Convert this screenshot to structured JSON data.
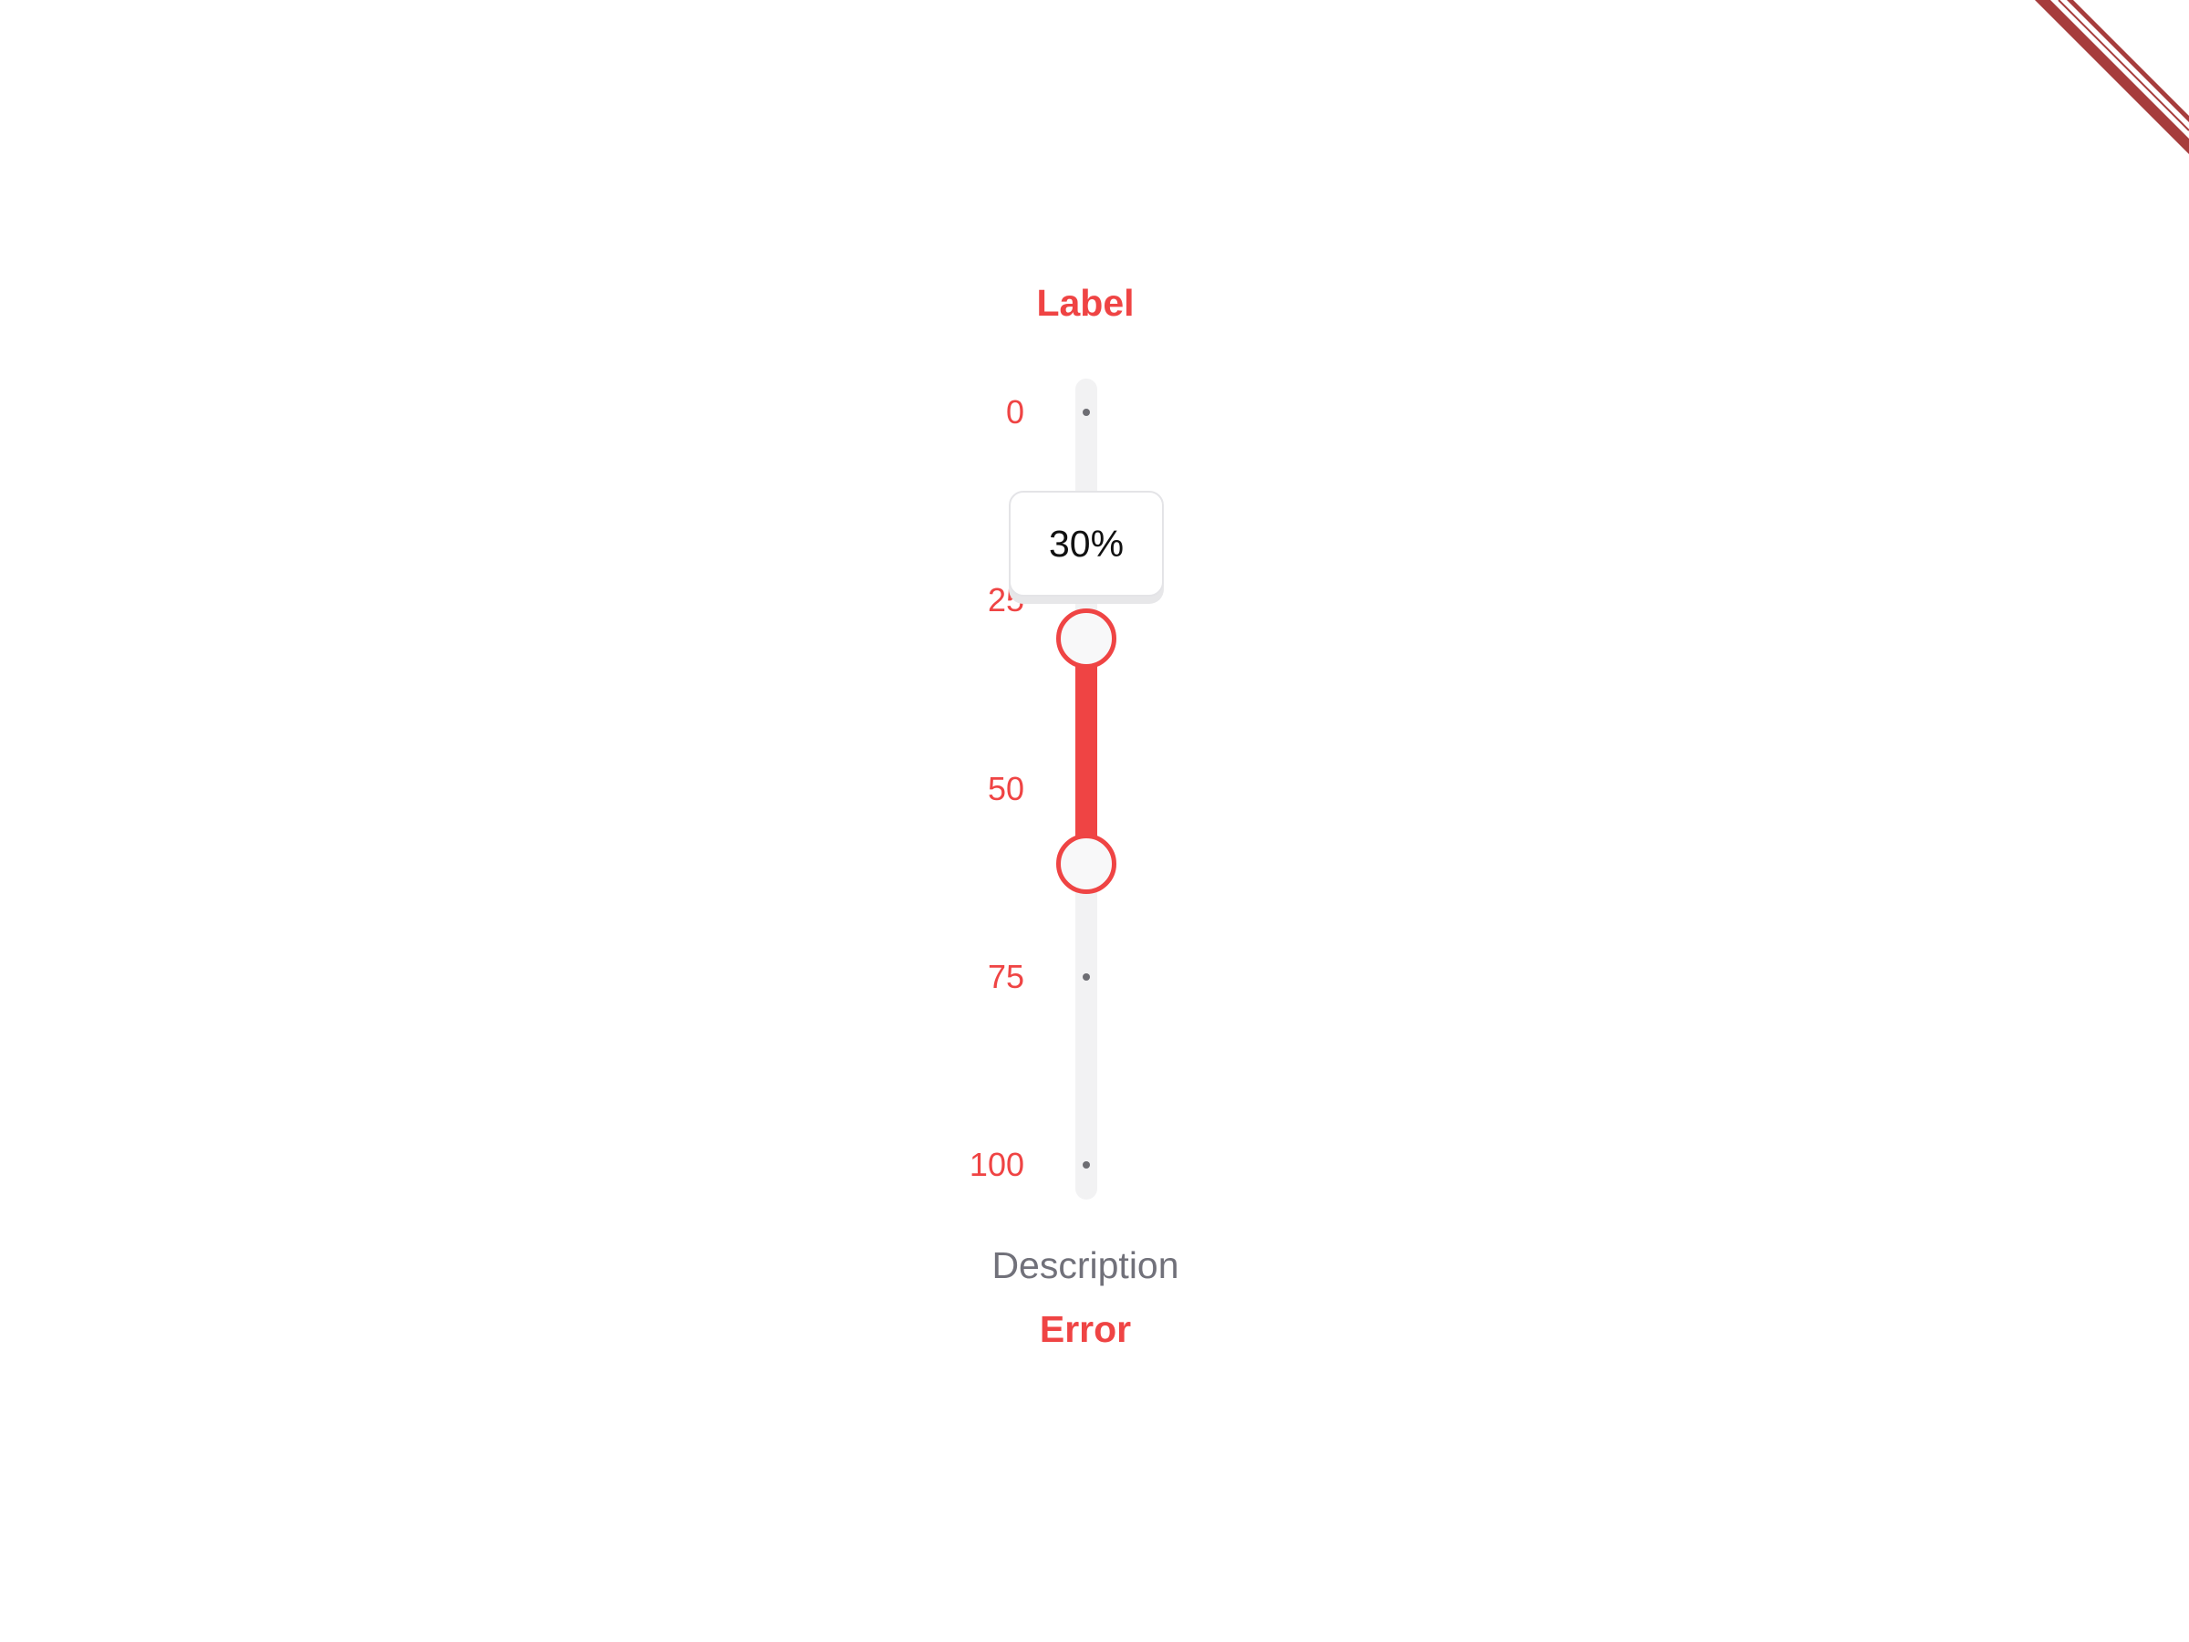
{
  "slider": {
    "label": "Label",
    "description": "Description",
    "error": "Error",
    "min": 0,
    "max": 100,
    "marks": [
      {
        "value": 0,
        "label": "0"
      },
      {
        "value": 25,
        "label": "25"
      },
      {
        "value": 50,
        "label": "50"
      },
      {
        "value": 75,
        "label": "75"
      },
      {
        "value": 100,
        "label": "100"
      }
    ],
    "range_start": 30,
    "range_end": 60,
    "tooltip": "30%",
    "orientation": "vertical",
    "state": "error"
  },
  "colors": {
    "accent": "#ef4444",
    "ribbon": "#a63c3c"
  },
  "icons": {
    "corner": "corner-ribbon"
  }
}
